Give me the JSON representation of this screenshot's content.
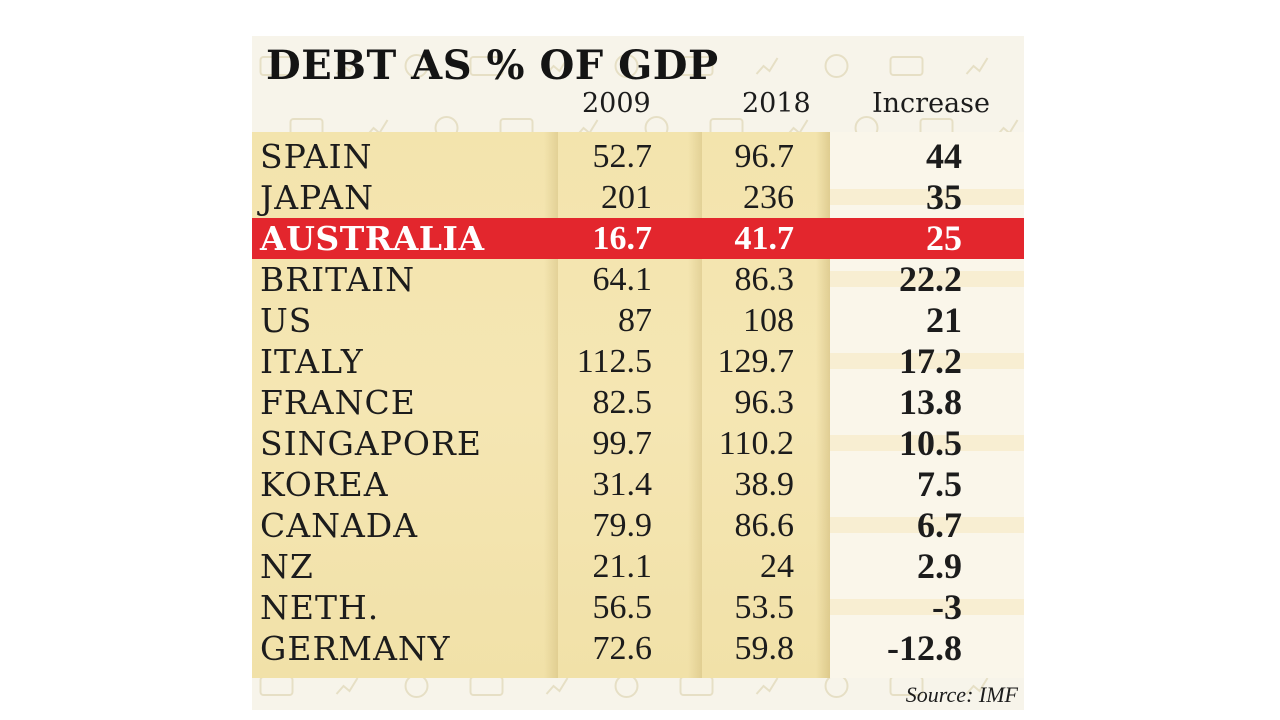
{
  "chart_data": {
    "type": "table",
    "title": "DEBT AS % OF GDP",
    "columns": [
      "",
      "2009",
      "2018",
      "Increase"
    ],
    "rows": [
      {
        "country": "SPAIN",
        "v2009": "52.7",
        "v2018": "96.7",
        "increase": "44"
      },
      {
        "country": "JAPAN",
        "v2009": "201",
        "v2018": "236",
        "increase": "35"
      },
      {
        "country": "AUSTRALIA",
        "v2009": "16.7",
        "v2018": "41.7",
        "increase": "25",
        "highlight": true
      },
      {
        "country": "BRITAIN",
        "v2009": "64.1",
        "v2018": "86.3",
        "increase": "22.2"
      },
      {
        "country": "US",
        "v2009": "87",
        "v2018": "108",
        "increase": "21"
      },
      {
        "country": "ITALY",
        "v2009": "112.5",
        "v2018": "129.7",
        "increase": "17.2"
      },
      {
        "country": "FRANCE",
        "v2009": "82.5",
        "v2018": "96.3",
        "increase": "13.8"
      },
      {
        "country": "SINGAPORE",
        "v2009": "99.7",
        "v2018": "110.2",
        "increase": "10.5"
      },
      {
        "country": "KOREA",
        "v2009": "31.4",
        "v2018": "38.9",
        "increase": "7.5"
      },
      {
        "country": "CANADA",
        "v2009": "79.9",
        "v2018": "86.6",
        "increase": "6.7"
      },
      {
        "country": "NZ",
        "v2009": "21.1",
        "v2018": "24",
        "increase": "2.9"
      },
      {
        "country": "NETH.",
        "v2009": "56.5",
        "v2018": "53.5",
        "increase": "-3"
      },
      {
        "country": "GERMANY",
        "v2009": "72.6",
        "v2018": "59.8",
        "increase": "-12.8"
      }
    ],
    "source": "Source: IMF",
    "highlight_color": "#e3262d",
    "band_color": "#f3e4ad"
  }
}
